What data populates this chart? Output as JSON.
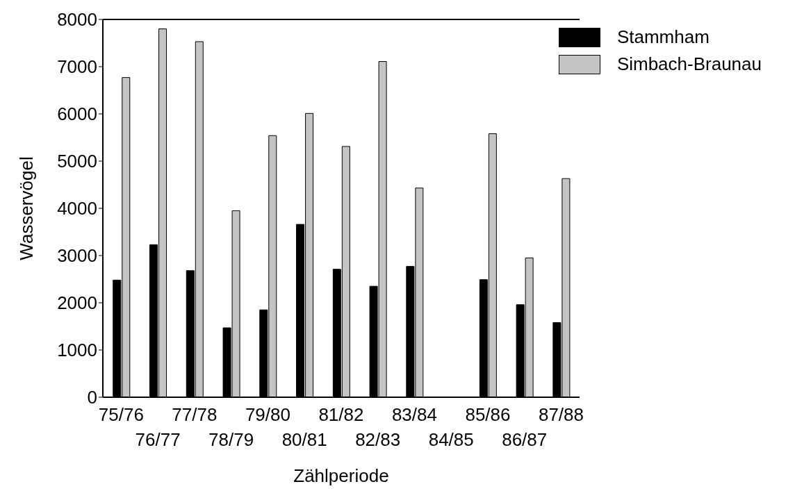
{
  "chart_data": {
    "type": "bar",
    "xlabel": "Zählperiode",
    "ylabel": "Wasservögel",
    "categories": [
      "75/76",
      "76/77",
      "77/78",
      "78/79",
      "79/80",
      "80/81",
      "81/82",
      "82/83",
      "83/84",
      "84/85",
      "85/86",
      "86/87",
      "87/88"
    ],
    "series": [
      {
        "name": "Stammham",
        "color": "#000000",
        "values": [
          2480,
          3230,
          2680,
          1470,
          1850,
          3660,
          2710,
          2350,
          2770,
          null,
          2490,
          1960,
          1580
        ]
      },
      {
        "name": "Simbach-Braunau",
        "color": "#c4c4c4",
        "values": [
          6770,
          7800,
          7530,
          3950,
          5540,
          6010,
          5310,
          7110,
          4430,
          null,
          5580,
          2950,
          4630
        ]
      }
    ],
    "ylim": [
      0,
      8000
    ],
    "yticks": [
      0,
      1000,
      2000,
      3000,
      4000,
      5000,
      6000,
      7000,
      8000
    ],
    "grid": false,
    "legend": "top right"
  }
}
